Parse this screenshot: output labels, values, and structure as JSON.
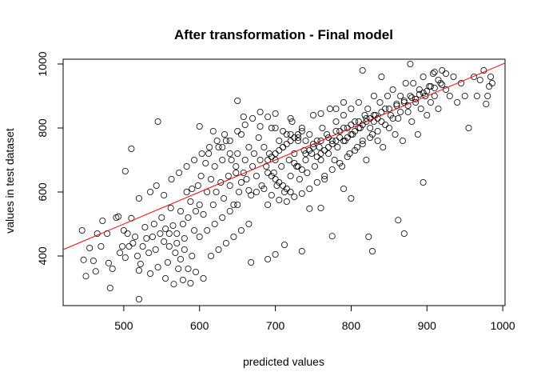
{
  "chart_data": {
    "type": "scatter",
    "title": "After transformation - Final model",
    "xlabel": "predicted values",
    "ylabel": "values in test dataset",
    "xlim": [
      420,
      1003
    ],
    "ylim": [
      245,
      1015
    ],
    "x_ticks": [
      500,
      600,
      700,
      800,
      900,
      1000
    ],
    "y_ticks": [
      400,
      600,
      800,
      1000
    ],
    "grid": false,
    "point_color": "#000000",
    "reference_line": {
      "intercept": 0,
      "slope": 1,
      "color": "#ff0000"
    },
    "points": [
      [
        445,
        480
      ],
      [
        447,
        388
      ],
      [
        450,
        337
      ],
      [
        455,
        425
      ],
      [
        460,
        385
      ],
      [
        463,
        352
      ],
      [
        465,
        470
      ],
      [
        470,
        430
      ],
      [
        472,
        510
      ],
      [
        478,
        470
      ],
      [
        480,
        378
      ],
      [
        485,
        360
      ],
      [
        490,
        520
      ],
      [
        493,
        523
      ],
      [
        495,
        410
      ],
      [
        498,
        430
      ],
      [
        500,
        480
      ],
      [
        502,
        395
      ],
      [
        505,
        470
      ],
      [
        507,
        430
      ],
      [
        510,
        518
      ],
      [
        512,
        440
      ],
      [
        515,
        460
      ],
      [
        518,
        400
      ],
      [
        520,
        355
      ],
      [
        522,
        375
      ],
      [
        525,
        430
      ],
      [
        528,
        490
      ],
      [
        530,
        455
      ],
      [
        533,
        410
      ],
      [
        535,
        345
      ],
      [
        538,
        460
      ],
      [
        540,
        500
      ],
      [
        542,
        420
      ],
      [
        545,
        365
      ],
      [
        548,
        470
      ],
      [
        550,
        520
      ],
      [
        553,
        445
      ],
      [
        555,
        485
      ],
      [
        558,
        380
      ],
      [
        560,
        430
      ],
      [
        562,
        550
      ],
      [
        565,
        495
      ],
      [
        568,
        410
      ],
      [
        570,
        470
      ],
      [
        572,
        360
      ],
      [
        575,
        540
      ],
      [
        578,
        500
      ],
      [
        580,
        455
      ],
      [
        583,
        600
      ],
      [
        585,
        520
      ],
      [
        588,
        570
      ],
      [
        590,
        610
      ],
      [
        593,
        480
      ],
      [
        595,
        540
      ],
      [
        598,
        620
      ],
      [
        600,
        560
      ],
      [
        602,
        650
      ],
      [
        605,
        530
      ],
      [
        608,
        690
      ],
      [
        610,
        600
      ],
      [
        612,
        720
      ],
      [
        615,
        640
      ],
      [
        618,
        560
      ],
      [
        620,
        680
      ],
      [
        622,
        600
      ],
      [
        625,
        740
      ],
      [
        628,
        630
      ],
      [
        630,
        700
      ],
      [
        632,
        580
      ],
      [
        635,
        760
      ],
      [
        638,
        650
      ],
      [
        640,
        620
      ],
      [
        642,
        700
      ],
      [
        645,
        560
      ],
      [
        648,
        680
      ],
      [
        650,
        720
      ],
      [
        652,
        600
      ],
      [
        655,
        780
      ],
      [
        658,
        660
      ],
      [
        660,
        700
      ],
      [
        662,
        640
      ],
      [
        665,
        740
      ],
      [
        668,
        590
      ],
      [
        670,
        680
      ],
      [
        672,
        720
      ],
      [
        675,
        650
      ],
      [
        678,
        770
      ],
      [
        680,
        700
      ],
      [
        682,
        620
      ],
      [
        685,
        740
      ],
      [
        688,
        680
      ],
      [
        690,
        560
      ],
      [
        692,
        720
      ],
      [
        695,
        800
      ],
      [
        698,
        660
      ],
      [
        700,
        700
      ],
      [
        702,
        620
      ],
      [
        705,
        760
      ],
      [
        708,
        680
      ],
      [
        710,
        740
      ],
      [
        712,
        600
      ],
      [
        715,
        780
      ],
      [
        718,
        700
      ],
      [
        720,
        650
      ],
      [
        722,
        820
      ],
      [
        725,
        720
      ],
      [
        728,
        680
      ],
      [
        730,
        760
      ],
      [
        732,
        640
      ],
      [
        735,
        800
      ],
      [
        738,
        730
      ],
      [
        740,
        700
      ],
      [
        742,
        660
      ],
      [
        745,
        780
      ],
      [
        748,
        720
      ],
      [
        750,
        840
      ],
      [
        752,
        680
      ],
      [
        755,
        760
      ],
      [
        758,
        740
      ],
      [
        760,
        700
      ],
      [
        762,
        800
      ],
      [
        765,
        640
      ],
      [
        768,
        780
      ],
      [
        770,
        720
      ],
      [
        772,
        860
      ],
      [
        775,
        760
      ],
      [
        778,
        700
      ],
      [
        780,
        820
      ],
      [
        782,
        740
      ],
      [
        785,
        790
      ],
      [
        788,
        680
      ],
      [
        790,
        840
      ],
      [
        792,
        760
      ],
      [
        795,
        800
      ],
      [
        798,
        720
      ],
      [
        800,
        860
      ],
      [
        802,
        780
      ],
      [
        805,
        820
      ],
      [
        808,
        740
      ],
      [
        810,
        880
      ],
      [
        812,
        800
      ],
      [
        815,
        760
      ],
      [
        818,
        840
      ],
      [
        820,
        700
      ],
      [
        822,
        860
      ],
      [
        825,
        800
      ],
      [
        828,
        780
      ],
      [
        830,
        900
      ],
      [
        832,
        840
      ],
      [
        835,
        760
      ],
      [
        838,
        880
      ],
      [
        840,
        820
      ],
      [
        842,
        740
      ],
      [
        845,
        860
      ],
      [
        848,
        900
      ],
      [
        850,
        800
      ],
      [
        852,
        840
      ],
      [
        855,
        920
      ],
      [
        858,
        780
      ],
      [
        860,
        870
      ],
      [
        862,
        830
      ],
      [
        865,
        900
      ],
      [
        868,
        760
      ],
      [
        870,
        880
      ],
      [
        872,
        940
      ],
      [
        875,
        850
      ],
      [
        878,
        900
      ],
      [
        880,
        820
      ],
      [
        882,
        940
      ],
      [
        885,
        880
      ],
      [
        888,
        780
      ],
      [
        890,
        920
      ],
      [
        892,
        860
      ],
      [
        895,
        960
      ],
      [
        898,
        900
      ],
      [
        900,
        840
      ],
      [
        903,
        930
      ],
      [
        905,
        880
      ],
      [
        908,
        970
      ],
      [
        910,
        900
      ],
      [
        915,
        860
      ],
      [
        918,
        940
      ],
      [
        920,
        980
      ],
      [
        925,
        920
      ],
      [
        930,
        900
      ],
      [
        935,
        960
      ],
      [
        940,
        880
      ],
      [
        945,
        940
      ],
      [
        950,
        900
      ],
      [
        955,
        800
      ],
      [
        962,
        960
      ],
      [
        966,
        900
      ],
      [
        970,
        950
      ],
      [
        975,
        980
      ],
      [
        978,
        875
      ],
      [
        980,
        900
      ],
      [
        982,
        930
      ],
      [
        984,
        960
      ],
      [
        986,
        940
      ],
      [
        545,
        820
      ],
      [
        600,
        805
      ],
      [
        618,
        790
      ],
      [
        650,
        885
      ],
      [
        658,
        835
      ],
      [
        668,
        380
      ],
      [
        690,
        390
      ],
      [
        700,
        405
      ],
      [
        712,
        435
      ],
      [
        735,
        415
      ],
      [
        745,
        548
      ],
      [
        760,
        550
      ],
      [
        775,
        462
      ],
      [
        790,
        610
      ],
      [
        800,
        580
      ],
      [
        823,
        460
      ],
      [
        828,
        415
      ],
      [
        862,
        512
      ],
      [
        870,
        470
      ],
      [
        895,
        630
      ],
      [
        815,
        980
      ],
      [
        840,
        960
      ],
      [
        878,
        1000
      ],
      [
        910,
        975
      ],
      [
        760,
        845
      ],
      [
        780,
        860
      ],
      [
        790,
        880
      ],
      [
        720,
        830
      ],
      [
        700,
        845
      ],
      [
        680,
        805
      ],
      [
        640,
        720
      ],
      [
        648,
        660
      ],
      [
        655,
        630
      ],
      [
        665,
        605
      ],
      [
        675,
        600
      ],
      [
        685,
        610
      ],
      [
        695,
        590
      ],
      [
        705,
        575
      ],
      [
        715,
        570
      ],
      [
        725,
        585
      ],
      [
        735,
        595
      ],
      [
        745,
        610
      ],
      [
        755,
        630
      ],
      [
        765,
        650
      ],
      [
        775,
        670
      ],
      [
        785,
        690
      ],
      [
        795,
        710
      ],
      [
        805,
        730
      ],
      [
        815,
        750
      ],
      [
        825,
        770
      ],
      [
        835,
        790
      ],
      [
        845,
        810
      ],
      [
        855,
        830
      ],
      [
        865,
        850
      ],
      [
        875,
        870
      ],
      [
        885,
        890
      ],
      [
        895,
        910
      ],
      [
        905,
        930
      ],
      [
        915,
        950
      ],
      [
        925,
        970
      ],
      [
        630,
        740
      ],
      [
        640,
        760
      ],
      [
        650,
        790
      ],
      [
        660,
        810
      ],
      [
        670,
        830
      ],
      [
        680,
        850
      ],
      [
        690,
        835
      ],
      [
        700,
        800
      ],
      [
        710,
        790
      ],
      [
        720,
        780
      ],
      [
        730,
        770
      ],
      [
        740,
        760
      ],
      [
        750,
        750
      ],
      [
        760,
        760
      ],
      [
        770,
        770
      ],
      [
        780,
        790
      ],
      [
        790,
        800
      ],
      [
        800,
        810
      ],
      [
        810,
        820
      ],
      [
        820,
        830
      ],
      [
        830,
        840
      ],
      [
        840,
        850
      ],
      [
        850,
        860
      ],
      [
        860,
        875
      ],
      [
        870,
        885
      ],
      [
        880,
        895
      ],
      [
        890,
        905
      ],
      [
        900,
        915
      ],
      [
        910,
        925
      ],
      [
        920,
        935
      ],
      [
        560,
        470
      ],
      [
        570,
        440
      ],
      [
        580,
        420
      ],
      [
        590,
        400
      ],
      [
        600,
        460
      ],
      [
        610,
        480
      ],
      [
        620,
        500
      ],
      [
        630,
        520
      ],
      [
        640,
        540
      ],
      [
        650,
        560
      ],
      [
        575,
        390
      ],
      [
        585,
        360
      ],
      [
        595,
        350
      ],
      [
        605,
        330
      ],
      [
        615,
        400
      ],
      [
        625,
        420
      ],
      [
        635,
        440
      ],
      [
        645,
        460
      ],
      [
        655,
        480
      ],
      [
        665,
        500
      ],
      [
        520,
        265
      ],
      [
        482,
        300
      ],
      [
        555,
        330
      ],
      [
        566,
        312
      ],
      [
        578,
        325
      ],
      [
        588,
        315
      ],
      [
        510,
        735
      ],
      [
        502,
        665
      ],
      [
        520,
        580
      ],
      [
        535,
        600
      ],
      [
        543,
        620
      ],
      [
        553,
        590
      ],
      [
        563,
        640
      ],
      [
        573,
        660
      ],
      [
        583,
        680
      ],
      [
        593,
        700
      ],
      [
        603,
        720
      ],
      [
        613,
        740
      ],
      [
        623,
        760
      ],
      [
        633,
        780
      ],
      [
        690,
        700
      ],
      [
        695,
        710
      ],
      [
        700,
        720
      ],
      [
        705,
        730
      ],
      [
        710,
        740
      ],
      [
        715,
        750
      ],
      [
        720,
        760
      ],
      [
        725,
        770
      ],
      [
        730,
        780
      ],
      [
        735,
        790
      ],
      [
        690,
        660
      ],
      [
        695,
        650
      ],
      [
        700,
        640
      ],
      [
        705,
        630
      ],
      [
        710,
        620
      ],
      [
        715,
        610
      ],
      [
        720,
        600
      ],
      [
        725,
        690
      ],
      [
        730,
        680
      ],
      [
        735,
        670
      ],
      [
        740,
        720
      ],
      [
        745,
        730
      ],
      [
        750,
        740
      ],
      [
        755,
        710
      ],
      [
        760,
        720
      ],
      [
        765,
        730
      ],
      [
        770,
        740
      ],
      [
        775,
        750
      ],
      [
        780,
        760
      ],
      [
        785,
        770
      ],
      [
        790,
        760
      ],
      [
        795,
        770
      ],
      [
        800,
        780
      ],
      [
        805,
        790
      ],
      [
        810,
        800
      ],
      [
        815,
        810
      ],
      [
        820,
        820
      ],
      [
        825,
        830
      ],
      [
        830,
        820
      ],
      [
        835,
        830
      ]
    ]
  }
}
